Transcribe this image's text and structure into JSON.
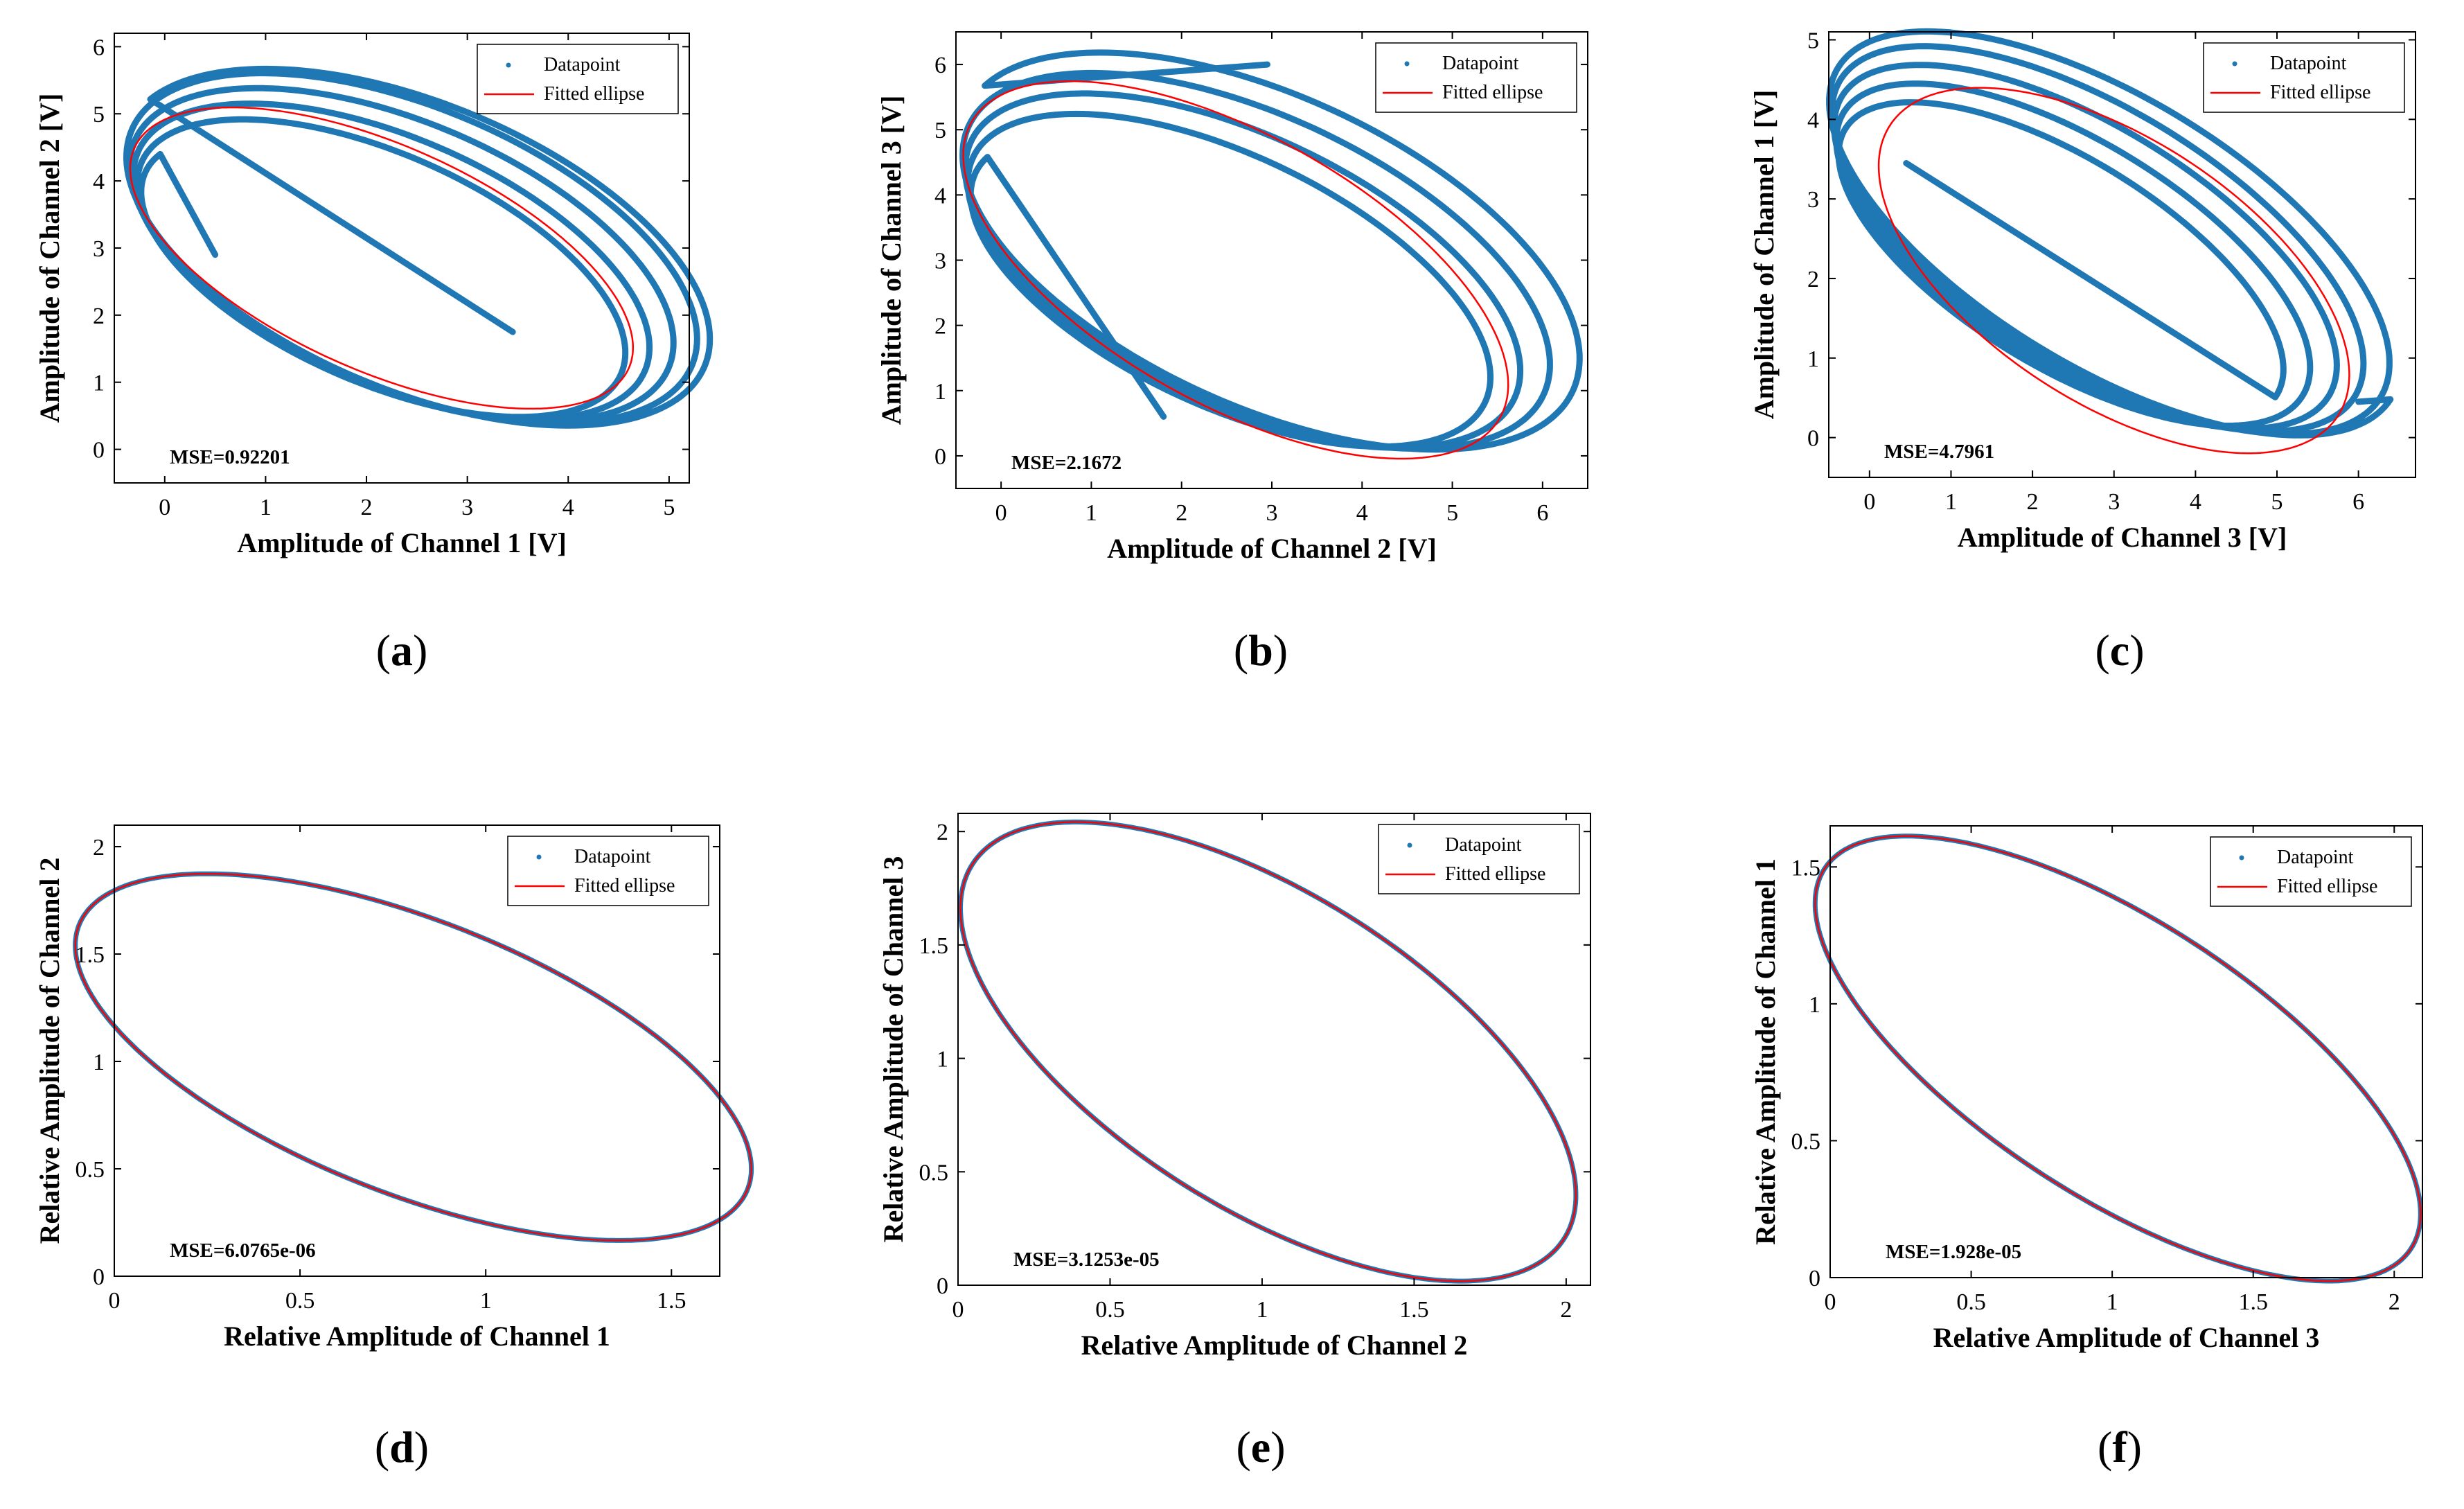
{
  "figure": {
    "colors": {
      "datapoint": "#1f77b4",
      "fitted": "#ff0000",
      "axis": "#000000",
      "background": "#ffffff"
    }
  },
  "chart_data": [
    {
      "id": "a",
      "type": "scatter",
      "panel_label": "a",
      "xlabel": "Amplitude of Channel 1 [V]",
      "ylabel": "Amplitude of Channel 2 [V]",
      "xlim": [
        -0.5,
        5.2
      ],
      "ylim": [
        -0.5,
        6.2
      ],
      "xticks": [
        0,
        1,
        2,
        3,
        4,
        5
      ],
      "yticks": [
        0,
        1,
        2,
        3,
        4,
        5,
        6
      ],
      "xtick_labels": [
        "0",
        "1",
        "2",
        "3",
        "4",
        "5"
      ],
      "ytick_labels": [
        "0",
        "1",
        "2",
        "3",
        "4",
        "5",
        "6"
      ],
      "annotation": "MSE=0.92201",
      "legend": {
        "position": "top-right",
        "entries": [
          "Datapoint",
          "Fitted ellipse"
        ]
      },
      "series": [
        {
          "name": "Datapoint",
          "kind": "spiral",
          "start": [
            0.5,
            2.9
          ],
          "end": [
            3.45,
            1.75
          ],
          "loops": [
            {
              "k": 0.5,
              "cx": 2.1,
              "cy": 2.6,
              "a": 2.8,
              "b": 1.42,
              "tilt_deg": -40
            },
            {
              "k": 1.5,
              "cx": 2.2,
              "cy": 2.7,
              "a": 2.95,
              "b": 1.55,
              "tilt_deg": -40
            },
            {
              "k": 2.5,
              "cx": 2.3,
              "cy": 2.8,
              "a": 3.1,
              "b": 1.68,
              "tilt_deg": -40
            },
            {
              "k": 3.5,
              "cx": 2.4,
              "cy": 2.9,
              "a": 3.25,
              "b": 1.8,
              "tilt_deg": -40
            },
            {
              "k": 4.5,
              "cx": 2.5,
              "cy": 3.0,
              "a": 3.4,
              "b": 1.9,
              "tilt_deg": -40
            },
            {
              "k": 5.5,
              "cx": 2.5,
              "cy": 3.0,
              "a": 3.45,
              "b": 1.95,
              "tilt_deg": -40
            }
          ]
        },
        {
          "name": "Fitted ellipse",
          "kind": "ellipse",
          "cx": 2.15,
          "cy": 2.85,
          "a": 3.0,
          "b": 1.5,
          "tilt_deg": -40
        }
      ]
    },
    {
      "id": "b",
      "type": "scatter",
      "panel_label": "b",
      "xlabel": "Amplitude of Channel 2 [V]",
      "ylabel": "Amplitude of Channel 3 [V]",
      "xlim": [
        -0.5,
        6.5
      ],
      "ylim": [
        -0.5,
        6.5
      ],
      "xticks": [
        0,
        1,
        2,
        3,
        4,
        5,
        6
      ],
      "yticks": [
        0,
        1,
        2,
        3,
        4,
        5,
        6
      ],
      "xtick_labels": [
        "0",
        "1",
        "2",
        "3",
        "4",
        "5",
        "6"
      ],
      "ytick_labels": [
        "0",
        "1",
        "2",
        "3",
        "4",
        "5",
        "6"
      ],
      "annotation": "MSE=2.1672",
      "legend": {
        "position": "top-right",
        "entries": [
          "Datapoint",
          "Fitted ellipse"
        ]
      },
      "series": [
        {
          "name": "Datapoint",
          "kind": "spiral",
          "start": [
            1.8,
            0.6
          ],
          "end": [
            2.95,
            6.0
          ],
          "loops": [
            {
              "k": 0.5,
              "cx": 2.45,
              "cy": 2.55,
              "a": 3.3,
              "b": 1.62,
              "tilt_deg": -38
            },
            {
              "k": 1.5,
              "cx": 2.6,
              "cy": 2.7,
              "a": 3.5,
              "b": 1.78,
              "tilt_deg": -38
            },
            {
              "k": 2.5,
              "cx": 2.75,
              "cy": 2.85,
              "a": 3.7,
              "b": 1.92,
              "tilt_deg": -38
            },
            {
              "k": 3.5,
              "cx": 2.9,
              "cy": 3.0,
              "a": 3.9,
              "b": 2.06,
              "tilt_deg": -38
            },
            {
              "k": 4.5,
              "cx": 3.05,
              "cy": 3.15,
              "a": 4.1,
              "b": 2.2,
              "tilt_deg": -38
            }
          ]
        },
        {
          "name": "Fitted ellipse",
          "kind": "ellipse",
          "cx": 2.6,
          "cy": 2.85,
          "a": 3.75,
          "b": 1.85,
          "tilt_deg": -43
        }
      ]
    },
    {
      "id": "c",
      "type": "scatter",
      "panel_label": "c",
      "xlabel": "Amplitude of Channel 3 [V]",
      "ylabel": "Amplitude of Channel 1 [V]",
      "xlim": [
        -0.5,
        6.7
      ],
      "ylim": [
        -0.5,
        5.1
      ],
      "xticks": [
        0,
        1,
        2,
        3,
        4,
        5,
        6
      ],
      "yticks": [
        0,
        1,
        2,
        3,
        4,
        5
      ],
      "xtick_labels": [
        "0",
        "1",
        "2",
        "3",
        "4",
        "5",
        "6"
      ],
      "ytick_labels": [
        "0",
        "1",
        "2",
        "3",
        "4",
        "5"
      ],
      "annotation": "MSE=4.7961",
      "legend": {
        "position": "top-right",
        "entries": [
          "Datapoint",
          "Fitted ellipse"
        ]
      },
      "series": [
        {
          "name": "Datapoint",
          "kind": "spiral",
          "start": [
            0.45,
            3.45
          ],
          "end": [
            6.0,
            0.45
          ],
          "loops": [
            {
              "k": 1,
              "cx": 2.35,
              "cy": 2.15,
              "a": 3.1,
              "b": 1.28,
              "tilt_deg": -32
            },
            {
              "k": 2,
              "cx": 2.5,
              "cy": 2.25,
              "a": 3.3,
              "b": 1.38,
              "tilt_deg": -32
            },
            {
              "k": 3,
              "cx": 2.65,
              "cy": 2.35,
              "a": 3.5,
              "b": 1.48,
              "tilt_deg": -32
            },
            {
              "k": 4,
              "cx": 2.8,
              "cy": 2.45,
              "a": 3.7,
              "b": 1.58,
              "tilt_deg": -32
            },
            {
              "k": 5,
              "cx": 2.95,
              "cy": 2.55,
              "a": 3.9,
              "b": 1.68,
              "tilt_deg": -32
            },
            {
              "k": 6,
              "cx": 3.0,
              "cy": 2.6,
              "a": 4.0,
              "b": 1.72,
              "tilt_deg": -32
            }
          ]
        },
        {
          "name": "Fitted ellipse",
          "kind": "ellipse",
          "cx": 3.0,
          "cy": 2.1,
          "a": 3.3,
          "b": 1.65,
          "tilt_deg": -34
        }
      ]
    },
    {
      "id": "d",
      "type": "scatter",
      "panel_label": "d",
      "xlabel": "Relative Amplitude of Channel 1",
      "ylabel": "Relative Amplitude of Channel 2",
      "xlim": [
        0,
        1.63
      ],
      "ylim": [
        0,
        2.1
      ],
      "xticks": [
        0,
        0.5,
        1,
        1.5
      ],
      "yticks": [
        0,
        0.5,
        1,
        1.5,
        2
      ],
      "xtick_labels": [
        "0",
        "0.5",
        "1",
        "1.5"
      ],
      "ytick_labels": [
        "0",
        "0.5",
        "1",
        "1.5",
        "2"
      ],
      "annotation": "MSE=6.0765e-06",
      "legend": {
        "position": "top-right",
        "entries": [
          "Datapoint",
          "Fitted ellipse"
        ]
      },
      "series": [
        {
          "name": "Datapoint",
          "kind": "ellipse",
          "cx": 0.805,
          "cy": 1.02,
          "a": 1.12,
          "b": 0.55,
          "tilt_deg": -42
        },
        {
          "name": "Fitted ellipse",
          "kind": "ellipse",
          "cx": 0.805,
          "cy": 1.02,
          "a": 1.12,
          "b": 0.55,
          "tilt_deg": -42
        }
      ]
    },
    {
      "id": "e",
      "type": "scatter",
      "panel_label": "e",
      "xlabel": "Relative Amplitude of Channel 2",
      "ylabel": "Relative Amplitude of Channel 3",
      "xlim": [
        0,
        2.08
      ],
      "ylim": [
        0,
        2.08
      ],
      "xticks": [
        0,
        0.5,
        1,
        1.5,
        2
      ],
      "yticks": [
        0,
        0.5,
        1,
        1.5,
        2
      ],
      "xtick_labels": [
        "0",
        "0.5",
        "1",
        "1.5",
        "2"
      ],
      "ytick_labels": [
        "0",
        "0.5",
        "1",
        "1.5",
        "2"
      ],
      "annotation": "MSE=3.1253e-05",
      "legend": {
        "position": "top-right",
        "entries": [
          "Datapoint",
          "Fitted ellipse"
        ]
      },
      "series": [
        {
          "name": "Datapoint",
          "kind": "ellipse",
          "cx": 1.02,
          "cy": 1.03,
          "a": 1.29,
          "b": 0.62,
          "tilt_deg": -45
        },
        {
          "name": "Fitted ellipse",
          "kind": "ellipse",
          "cx": 1.02,
          "cy": 1.03,
          "a": 1.29,
          "b": 0.62,
          "tilt_deg": -45
        }
      ]
    },
    {
      "id": "f",
      "type": "scatter",
      "panel_label": "f",
      "xlabel": "Relative Amplitude of Channel 3",
      "ylabel": "Relative Amplitude of Channel 1",
      "xlim": [
        0,
        2.1
      ],
      "ylim": [
        0,
        1.65
      ],
      "xticks": [
        0,
        0.5,
        1,
        1.5,
        2
      ],
      "yticks": [
        0,
        0.5,
        1,
        1.5
      ],
      "xtick_labels": [
        "0",
        "0.5",
        "1",
        "1.5",
        "2"
      ],
      "ytick_labels": [
        "0",
        "0.5",
        "1",
        "1.5"
      ],
      "annotation": "MSE=1.928e-05",
      "legend": {
        "position": "top-right",
        "entries": [
          "Datapoint",
          "Fitted ellipse"
        ]
      },
      "series": [
        {
          "name": "Datapoint",
          "kind": "ellipse",
          "cx": 1.02,
          "cy": 0.8,
          "a": 1.25,
          "b": 0.5,
          "tilt_deg": -34
        },
        {
          "name": "Fitted ellipse",
          "kind": "ellipse",
          "cx": 1.02,
          "cy": 0.8,
          "a": 1.25,
          "b": 0.5,
          "tilt_deg": -34
        }
      ]
    }
  ]
}
